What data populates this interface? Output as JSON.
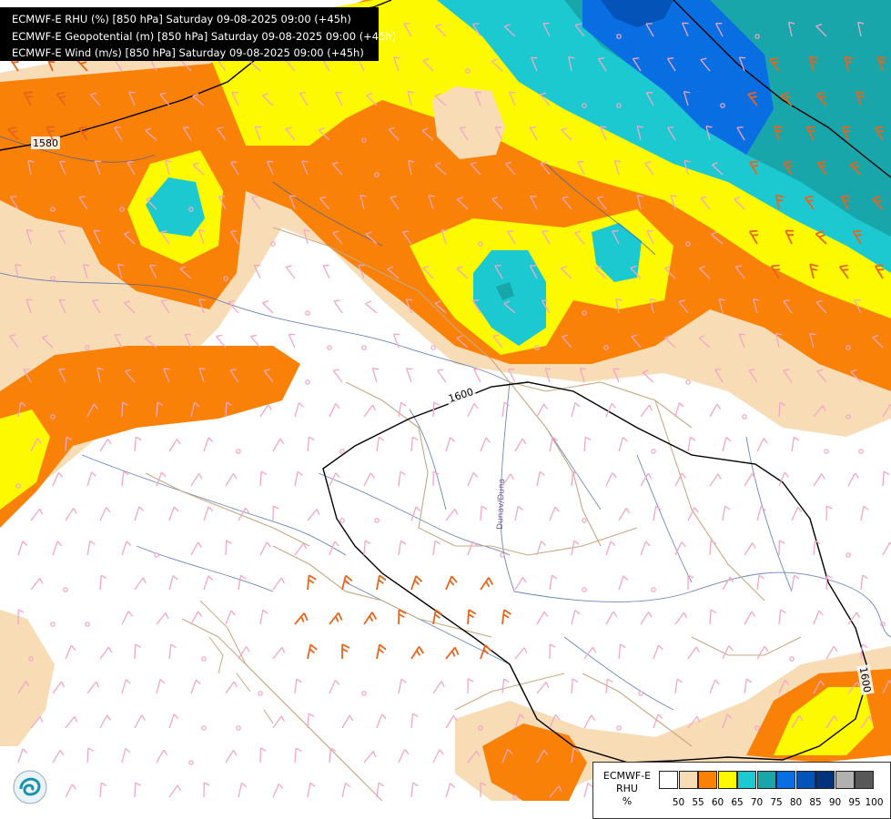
{
  "header": {
    "line1": "ECMWF-E RHU (%) [850 hPa] Saturday 09-08-2025 09:00 (+45h)",
    "line2": "ECMWF-E Geopotential (m) [850 hPa] Saturday 09-08-2025 09:00 (+45h)",
    "line3": "ECMWF-E Wind (m/s) [850 hPa] Saturday 09-08-2025 09:00 (+45h)"
  },
  "contours": {
    "label_1580": "1580",
    "label_1600_a": "1600",
    "label_1600_b": "1600"
  },
  "map_labels": {
    "river": "Dunav/Duna"
  },
  "legend": {
    "title_line1": "ECMWF-E",
    "title_line2": "RHU",
    "title_line3": "%",
    "colors": [
      "#ffffff",
      "#f8dcb6",
      "#f98107",
      "#fcf900",
      "#1cc9d0",
      "#19a6ab",
      "#0a6ee3",
      "#0353b9",
      "#02317d",
      "#b1b1b1",
      "#585858"
    ],
    "ticks": [
      "50",
      "55",
      "60",
      "65",
      "70",
      "75",
      "80",
      "85",
      "90",
      "95",
      "100"
    ]
  },
  "colors": {
    "rhu_50_55": "#f8dcb6",
    "rhu_55_60": "#f98107",
    "rhu_60_65": "#fcf900",
    "rhu_65_70": "#1cc9d0",
    "rhu_70_75": "#19a6ab",
    "rhu_75_80": "#0a6ee3",
    "rhu_80_85": "#0353b9",
    "rhu_85_90": "#02317d",
    "wind_barb_light": "#f4a6c6",
    "wind_barb_strong": "#e8641a",
    "geopotential_line": "#000000"
  },
  "logo": {
    "icon": "ecmwf-logo-icon"
  }
}
